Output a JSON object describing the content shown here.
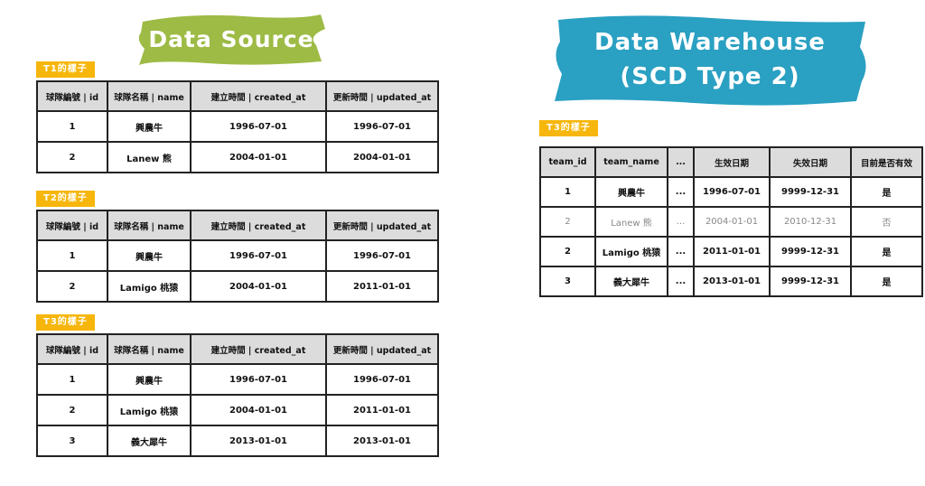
{
  "source": {
    "title": "Data Source",
    "color": "#9dbb45",
    "headers": [
      "球隊編號 | id",
      "球隊名稱 | name",
      "建立時間 | created_at",
      "更新時間 | updated_at"
    ],
    "tables": [
      {
        "label": "T1的樣子",
        "rows": [
          [
            "1",
            "興農牛",
            "1996-07-01",
            "1996-07-01"
          ],
          [
            "2",
            "Lanew 熊",
            "2004-01-01",
            "2004-01-01"
          ]
        ]
      },
      {
        "label": "T2的樣子",
        "rows": [
          [
            "1",
            "興農牛",
            "1996-07-01",
            "1996-07-01"
          ],
          [
            "2",
            "Lamigo 桃猿",
            "2004-01-01",
            "2011-01-01"
          ]
        ]
      },
      {
        "label": "T3的樣子",
        "rows": [
          [
            "1",
            "興農牛",
            "1996-07-01",
            "1996-07-01"
          ],
          [
            "2",
            "Lamigo 桃猿",
            "2004-01-01",
            "2011-01-01"
          ],
          [
            "3",
            "義大犀牛",
            "2013-01-01",
            "2013-01-01"
          ]
        ]
      }
    ]
  },
  "warehouse": {
    "title_line1": "Data Warehouse",
    "title_line2": "(SCD Type 2)",
    "color": "#2aa0c2",
    "label": "T3的樣子",
    "headers": [
      "team_id",
      "team_name",
      "...",
      "生效日期",
      "失效日期",
      "目前是否有效"
    ],
    "rows": [
      {
        "cells": [
          "1",
          "興農牛",
          "...",
          "1996-07-01",
          "9999-12-31",
          "是"
        ],
        "expired": false
      },
      {
        "cells": [
          "2",
          "Lanew 熊",
          "...",
          "2004-01-01",
          "2010-12-31",
          "否"
        ],
        "expired": true
      },
      {
        "cells": [
          "2",
          "Lamigo 桃猿",
          "...",
          "2011-01-01",
          "9999-12-31",
          "是"
        ],
        "expired": false
      },
      {
        "cells": [
          "3",
          "義大犀牛",
          "...",
          "2013-01-01",
          "9999-12-31",
          "是"
        ],
        "expired": false
      }
    ]
  },
  "label_color": "#f6b60b"
}
